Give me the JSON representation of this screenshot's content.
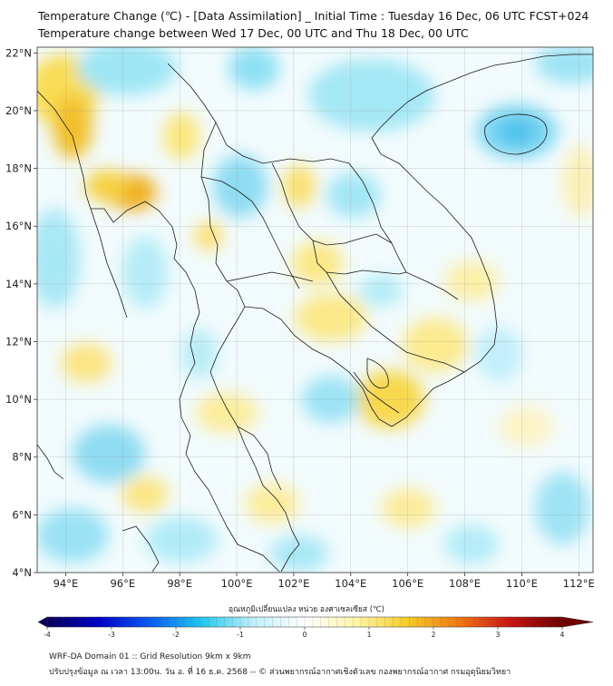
{
  "header": {
    "title_line1": "Temperature Change (℃) - [Data Assimilation] _ Initial Time : Tuesday 16 Dec, 06 UTC FCST+024",
    "title_line2": "Temperature change between Wed 17 Dec, 00 UTC and Thu 18 Dec, 00 UTC"
  },
  "map": {
    "lat_labels": [
      "22°N",
      "20°N",
      "18°N",
      "16°N",
      "14°N",
      "12°N",
      "10°N",
      "8°N",
      "6°N",
      "4°N"
    ],
    "lon_labels": [
      "94°E",
      "96°E",
      "98°E",
      "100°E",
      "102°E",
      "104°E",
      "106°E",
      "108°E",
      "110°E",
      "112°E"
    ],
    "lat_values": [
      22,
      20,
      18,
      16,
      14,
      12,
      10,
      8,
      6,
      4
    ],
    "lon_values": [
      94,
      96,
      98,
      100,
      102,
      104,
      106,
      108,
      110,
      112
    ],
    "extent": {
      "lon_min": 93,
      "lon_max": 112.5,
      "lat_min": 4,
      "lat_max": 22.2
    },
    "grid": true,
    "background_color": "#f2fbfd"
  },
  "colorbar": {
    "label": "อุณหภูมิเปลี่ยนแปลง หน่วย องศาเซลเซียส (℃)",
    "ticks": [
      "-4",
      "-3",
      "-2",
      "-1",
      "0",
      "1",
      "2",
      "3",
      "4"
    ],
    "min": -4,
    "max": 4,
    "extend": "both",
    "colors": [
      "#08005a",
      "#0000c8",
      "#0a5cf0",
      "#22c8f0",
      "#bff0fa",
      "#ffffff",
      "#fff6a8",
      "#f5cd28",
      "#f07814",
      "#c81414",
      "#6e0000"
    ]
  },
  "footer": {
    "line1": "WRF-DA Domain 01 :: Grid Resolution 9km x 9km",
    "line2": "ปรับปรุงข้อมูล ณ เวลา 13:00น. วัน อ. ที่ 16 ธ.ค. 2568 -- © ส่วนพยากรณ์อากาศเชิงตัวเลข กองพยากรณ์อากาศ กรมอุตุนิยมวิทยา"
  }
}
